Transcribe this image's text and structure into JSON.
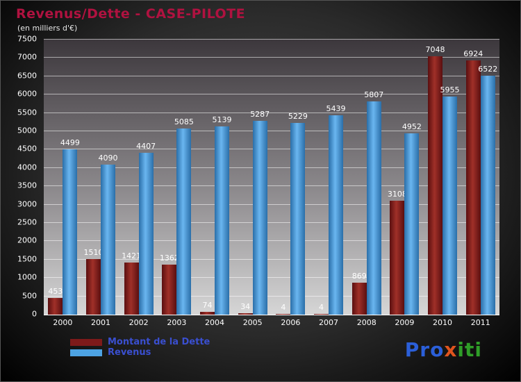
{
  "title": "Revenus/Dette - CASE-PILOTE",
  "subtitle": "(en milliers d'€)",
  "colors": {
    "title": "#b01240",
    "dette_bar": "#7d1a1a",
    "dette_bar_light": "#a03028",
    "revenus_bar": "#3585c8",
    "revenus_bar_light": "#6ab6f0",
    "legend_text": "#3a4fd0",
    "axis_text": "#ffffff"
  },
  "chart_data": {
    "type": "bar",
    "title": "Revenus/Dette - CASE-PILOTE",
    "subtitle": "(en milliers d'€)",
    "categories": [
      "2000",
      "2001",
      "2002",
      "2003",
      "2004",
      "2005",
      "2006",
      "2007",
      "2008",
      "2009",
      "2010",
      "2011"
    ],
    "series": [
      {
        "name": "Montant de la Dette",
        "color": "#7d1a1a",
        "values": [
          453,
          1510,
          1421,
          1362,
          74,
          34,
          4,
          4,
          869,
          3108,
          7048,
          6924
        ]
      },
      {
        "name": "Revenus",
        "color": "#3585c8",
        "values": [
          4499,
          4090,
          4407,
          5085,
          5139,
          5287,
          5229,
          5439,
          5807,
          4952,
          5955,
          6522
        ]
      }
    ],
    "ylim": [
      0,
      7500
    ],
    "ytick_step": 500,
    "grid": true,
    "legend_position": "bottom-left"
  },
  "legend": {
    "items": [
      {
        "label": "Montant de la Dette",
        "color": "#7d1a1a"
      },
      {
        "label": "Revenus",
        "color": "#4da3e3"
      }
    ]
  },
  "logo": {
    "text": "Proxiti",
    "parts": [
      {
        "text": "Pro",
        "color": "#2b5fd9"
      },
      {
        "text": "x",
        "color": "#e0541e"
      },
      {
        "text": "iti",
        "color": "#2f9e28"
      }
    ]
  }
}
